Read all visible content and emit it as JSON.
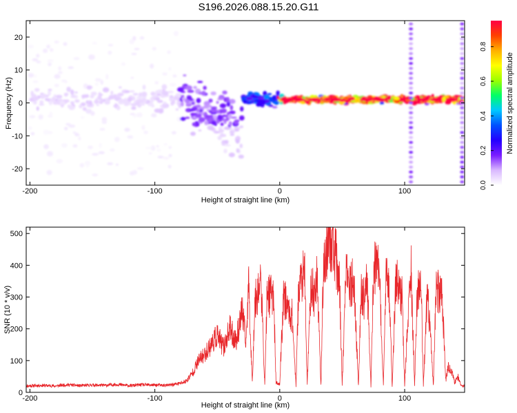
{
  "title": "S196.2026.088.15.20.G11",
  "chart_data": [
    {
      "type": "heatmap",
      "panel": "top",
      "xlabel": "Height of straight line (km)",
      "ylabel": "Frequency (Hz)",
      "xlim": [
        -203,
        148
      ],
      "ylim": [
        -25,
        25
      ],
      "xticks": [
        -200,
        -100,
        0,
        100
      ],
      "yticks": [
        -20,
        -10,
        0,
        10,
        20
      ],
      "colorbar": {
        "label": "Normalized spectral amplitude",
        "range": [
          0,
          0.95
        ],
        "ticks": [
          0.0,
          0.2,
          0.4,
          0.6,
          0.8
        ],
        "colormap": [
          "#ffffff",
          "#d9b8ff",
          "#7a1cff",
          "#2400ff",
          "#0050ff",
          "#00c8ff",
          "#00ff66",
          "#9cff00",
          "#ffff00",
          "#ffb000",
          "#ff4000",
          "#ff0044"
        ]
      },
      "ridge": {
        "frequency_hz": 1,
        "segments": [
          {
            "x": [
              -200,
              -80
            ],
            "amplitude": 0.05,
            "spread_hz": 4,
            "scatter_hz": 22
          },
          {
            "x": [
              -80,
              -30
            ],
            "amplitude": 0.15,
            "spread_hz": 8,
            "trend_to_hz": -12
          },
          {
            "x": [
              -30,
              0
            ],
            "amplitude": 0.3,
            "spread_hz": 2
          },
          {
            "x": [
              0,
              148
            ],
            "amplitude": 0.9,
            "spread_hz": 1
          }
        ],
        "hot_spots_km": [
          5,
          15,
          28,
          45,
          70,
          80,
          115,
          125,
          138
        ]
      }
    },
    {
      "type": "line",
      "panel": "bottom",
      "xlabel": "Height of straight line (km)",
      "ylabel": "SNR (10 * v/v)",
      "xlim": [
        -203,
        148
      ],
      "ylim": [
        0,
        520
      ],
      "xticks": [
        -200,
        -100,
        0,
        100
      ],
      "yticks": [
        0,
        100,
        200,
        300,
        400,
        500
      ],
      "color": "#e8262a",
      "series": [
        {
          "x": [
            -203,
            -190,
            -180,
            -170,
            -160,
            -150,
            -140,
            -130,
            -120,
            -110,
            -100,
            -90,
            -80,
            -75,
            -70,
            -65,
            -60,
            -55,
            -50,
            -45,
            -40,
            -35,
            -30,
            -27,
            -25,
            -22,
            -20,
            -18,
            -15,
            -12,
            -10,
            -8,
            -5,
            -3,
            0,
            3,
            5,
            8,
            10,
            13,
            15,
            18,
            20,
            22,
            25,
            28,
            30,
            33,
            35,
            38,
            40,
            42,
            45,
            48,
            50,
            53,
            55,
            58,
            60,
            63,
            65,
            68,
            70,
            73,
            75,
            78,
            80,
            83,
            85,
            88,
            90,
            93,
            95,
            98,
            100,
            103,
            105,
            108,
            110,
            113,
            115,
            118,
            120,
            123,
            125,
            128,
            130,
            133,
            135,
            138,
            140,
            143,
            145,
            148
          ],
          "values": [
            20,
            22,
            20,
            24,
            21,
            23,
            22,
            25,
            21,
            24,
            23,
            22,
            28,
            35,
            60,
            100,
            120,
            150,
            180,
            140,
            200,
            160,
            260,
            150,
            350,
            30,
            280,
            310,
            350,
            20,
            330,
            300,
            320,
            30,
            25,
            310,
            280,
            250,
            240,
            20,
            320,
            370,
            360,
            25,
            340,
            300,
            380,
            20,
            400,
            450,
            500,
            460,
            420,
            330,
            20,
            380,
            320,
            350,
            300,
            20,
            310,
            290,
            350,
            20,
            380,
            400,
            340,
            20,
            360,
            310,
            20,
            360,
            330,
            300,
            20,
            260,
            400,
            20,
            300,
            360,
            20,
            300,
            220,
            20,
            330,
            310,
            300,
            40,
            80,
            60,
            30,
            50,
            20,
            20
          ]
        }
      ]
    }
  ]
}
